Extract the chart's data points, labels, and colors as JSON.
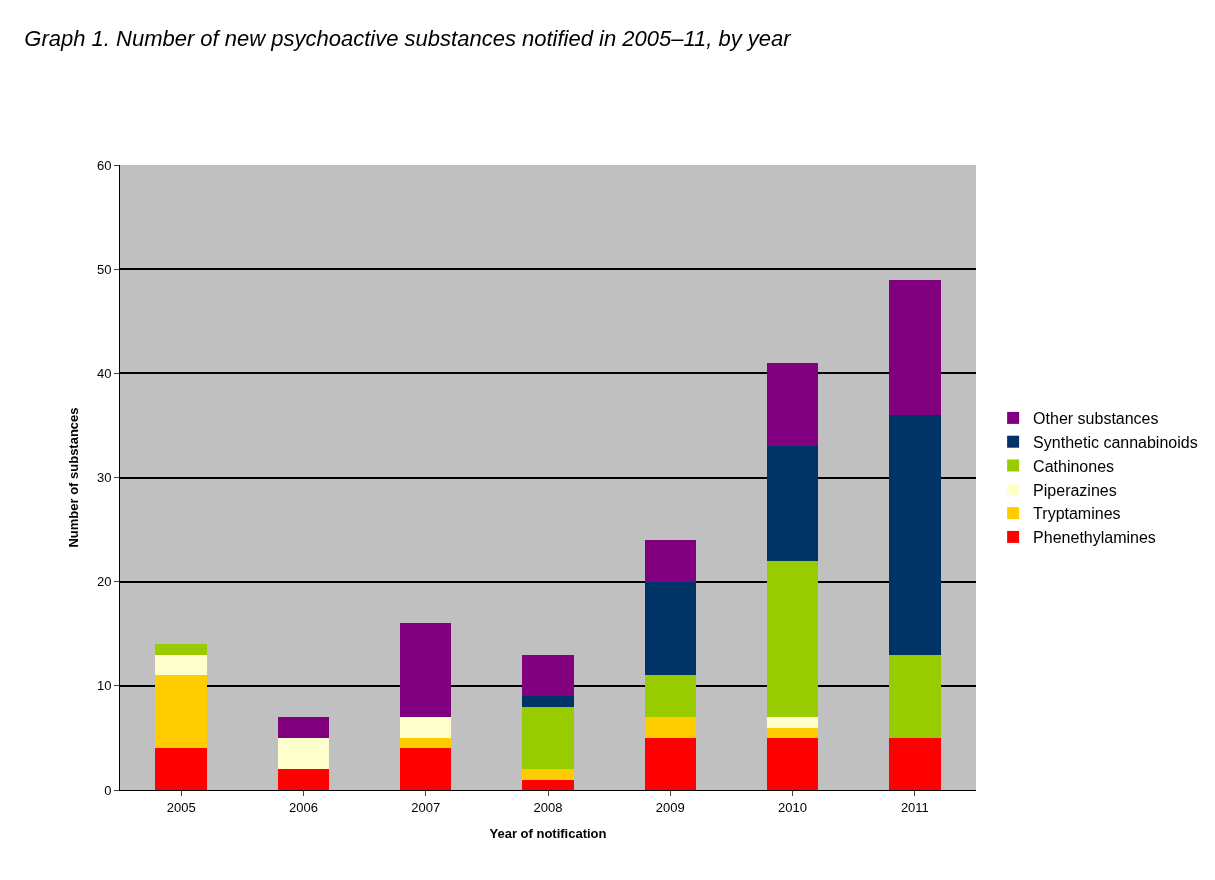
{
  "chart_data": {
    "type": "bar",
    "stacked": true,
    "title": "Graph 1. Number of new psychoactive substances notified in 2005–11, by year",
    "xlabel": "Year of notification",
    "ylabel": "Number of substances",
    "categories": [
      "2005",
      "2006",
      "2007",
      "2008",
      "2009",
      "2010",
      "2011"
    ],
    "series": [
      {
        "name": "Phenethylamines",
        "color": "#ff0000",
        "values": [
          4,
          2,
          4,
          1,
          5,
          5,
          5
        ]
      },
      {
        "name": "Tryptamines",
        "color": "#ffcc00",
        "values": [
          7,
          0,
          1,
          1,
          2,
          1,
          0
        ]
      },
      {
        "name": "Piperazines",
        "color": "#ffffcc",
        "values": [
          2,
          3,
          2,
          0,
          0,
          1,
          0
        ]
      },
      {
        "name": "Cathinones",
        "color": "#99cc00",
        "values": [
          1,
          0,
          0,
          6,
          4,
          15,
          8
        ]
      },
      {
        "name": "Synthetic cannabinoids",
        "color": "#003366",
        "values": [
          0,
          0,
          0,
          1,
          9,
          11,
          23
        ]
      },
      {
        "name": "Other substances",
        "color": "#800080",
        "values": [
          0,
          2,
          9,
          4,
          4,
          8,
          13
        ]
      }
    ],
    "ylim": [
      0,
      60
    ],
    "yticks": [
      0,
      10,
      20,
      30,
      40,
      50,
      60
    ],
    "grid": "y",
    "legend": "right"
  }
}
